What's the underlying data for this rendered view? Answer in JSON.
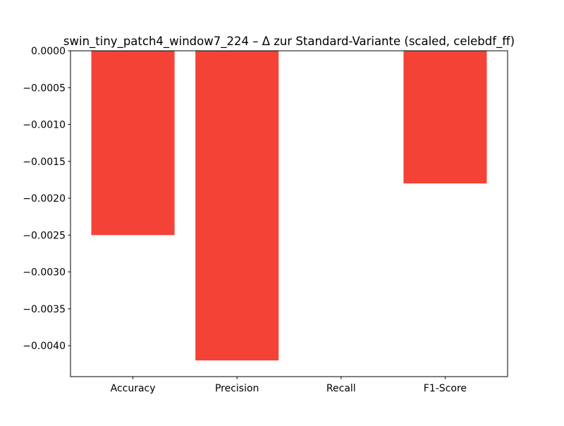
{
  "chart_data": {
    "type": "bar",
    "title": "swin_tiny_patch4_window7_224 – Δ zur Standard-Variante (scaled, celebdf_ff)",
    "xlabel": "",
    "ylabel": "",
    "categories": [
      "Accuracy",
      "Precision",
      "Recall",
      "F1-Score"
    ],
    "values": [
      -0.0025,
      -0.0042,
      0.0,
      -0.0018
    ],
    "ylim": [
      -0.00442,
      0.0
    ],
    "yticks": [
      0.0,
      -0.0005,
      -0.001,
      -0.0015,
      -0.002,
      -0.0025,
      -0.003,
      -0.0035,
      -0.004
    ],
    "ytick_labels": [
      "0.0000",
      "−0.0005",
      "−0.0010",
      "−0.0015",
      "−0.0020",
      "−0.0025",
      "−0.0030",
      "−0.0035",
      "−0.0040"
    ],
    "bar_color": "#f44336",
    "grid": false,
    "legend": "none"
  }
}
